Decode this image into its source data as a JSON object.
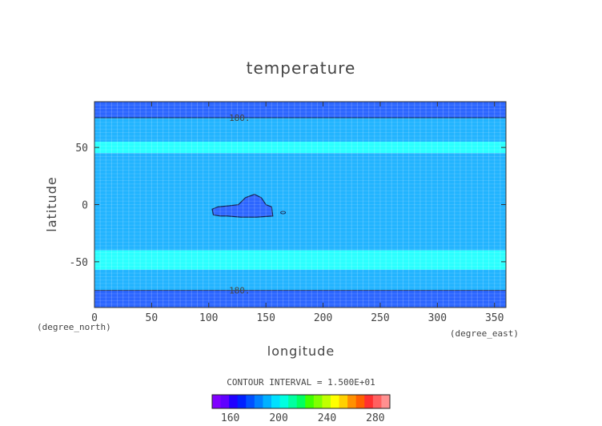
{
  "chart_data": {
    "type": "heatmap",
    "title": "temperature",
    "xlabel": "longitude",
    "ylabel": "latitude",
    "x_unit": "(degree_east)",
    "y_unit": "(degree_north)",
    "xlim": [
      0,
      360
    ],
    "ylim": [
      -90,
      90
    ],
    "x_ticks": [
      0,
      50,
      100,
      150,
      200,
      250,
      300,
      350
    ],
    "y_ticks": [
      -50,
      0,
      50
    ],
    "contour_interval_label": "CONTOUR INTERVAL = 1.500E+01",
    "contour_labels": [
      {
        "text": "180.",
        "x": 127,
        "y": 76
      },
      {
        "text": "180.",
        "x": 127,
        "y": -75
      }
    ],
    "bands": [
      {
        "lat_from": 76,
        "lat_to": 90,
        "level": 175
      },
      {
        "lat_from": 55,
        "lat_to": 76,
        "level": 185
      },
      {
        "lat_from": 45,
        "lat_to": 55,
        "level": 195
      },
      {
        "lat_from": -40,
        "lat_to": 45,
        "level": 185
      },
      {
        "lat_from": -57,
        "lat_to": -40,
        "level": 195
      },
      {
        "lat_from": -75,
        "lat_to": -57,
        "level": 185
      },
      {
        "lat_from": -90,
        "lat_to": -75,
        "level": 175
      }
    ],
    "low_region": {
      "level": 175,
      "outline": [
        [
          104,
          -9
        ],
        [
          103,
          -4
        ],
        [
          108,
          -2
        ],
        [
          118,
          -1
        ],
        [
          126,
          0
        ],
        [
          132,
          6
        ],
        [
          140,
          9
        ],
        [
          146,
          6
        ],
        [
          150,
          0
        ],
        [
          155,
          -2
        ],
        [
          156,
          -10
        ],
        [
          142,
          -11
        ],
        [
          128,
          -11
        ],
        [
          116,
          -10
        ],
        [
          110,
          -10
        ]
      ]
    },
    "small_contour": {
      "x": 165,
      "y": -7
    },
    "colorbar": {
      "ticks": [
        160,
        200,
        240,
        280
      ],
      "colors": [
        "#8000ff",
        "#6000ff",
        "#2000ff",
        "#0020ff",
        "#0050ff",
        "#0080ff",
        "#00b0ff",
        "#00e0ff",
        "#00ffe0",
        "#00ffa0",
        "#00ff60",
        "#40ff00",
        "#80ff00",
        "#c0ff00",
        "#ffff00",
        "#ffd000",
        "#ff9000",
        "#ff6000",
        "#ff3030",
        "#ff6060",
        "#ff9090"
      ],
      "min": 145,
      "step": 7
    },
    "level_colors": {
      "175": "#2c66ff",
      "185": "#22b4ff",
      "195": "#2affff"
    },
    "grid": true
  }
}
